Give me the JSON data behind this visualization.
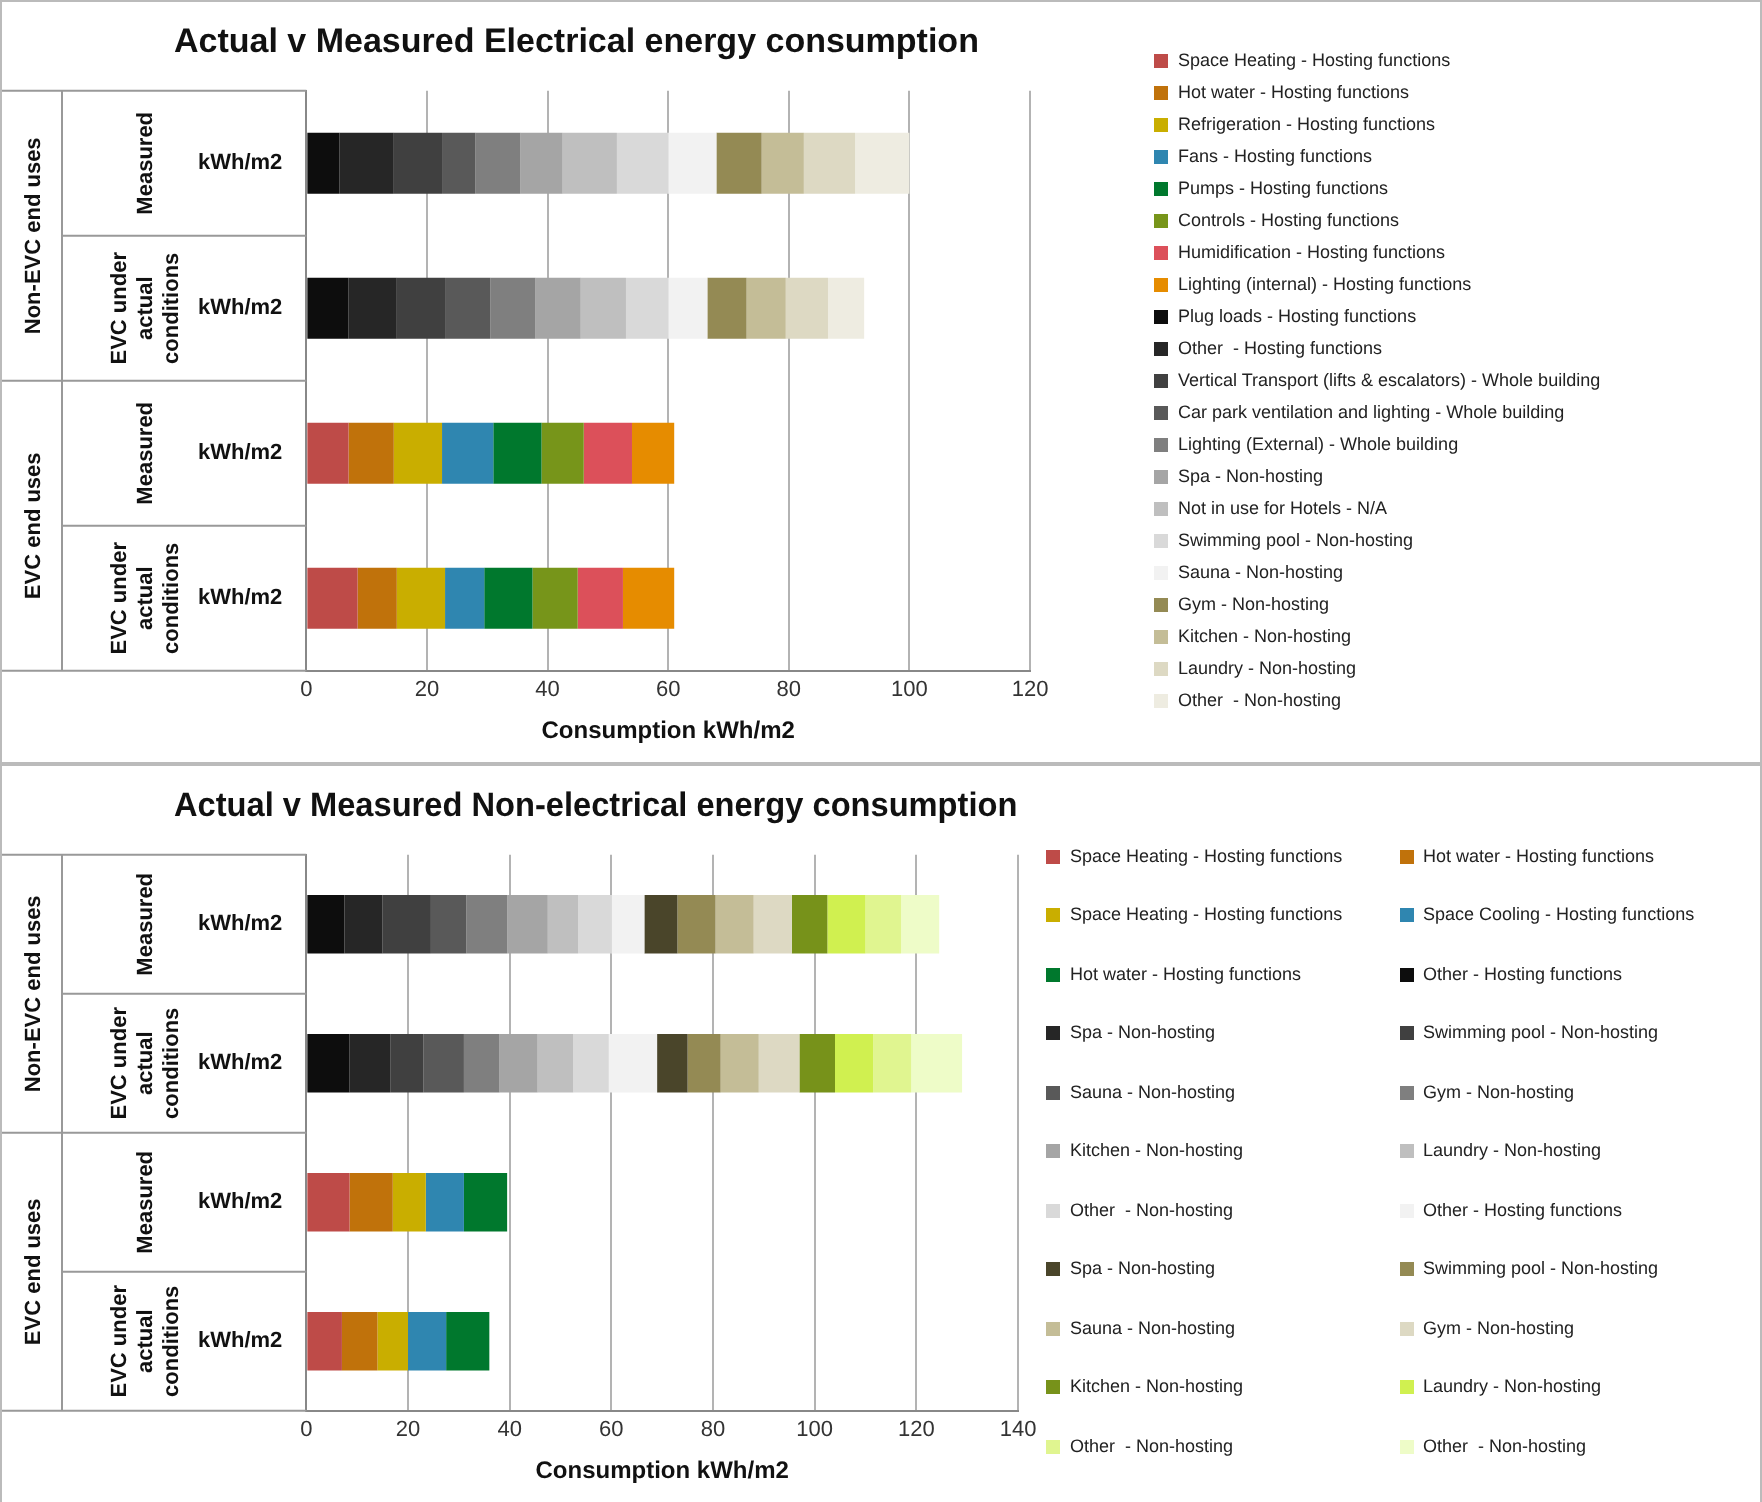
{
  "chart_data": [
    {
      "type": "bar",
      "orientation": "horizontal",
      "stacked": true,
      "title": "Actual v Measured Electrical energy consumption",
      "xlabel": "Consumption kWh/m2",
      "categories": [
        "kWh/m2",
        "kWh/m2",
        "kWh/m2",
        "kWh/m2"
      ],
      "annotations": [
        "Measured",
        "EVC under actual conditions",
        "Measured",
        "EVC under actual conditions",
        "Non-EVC end uses",
        "EVC end uses"
      ],
      "xlim": [
        0,
        120
      ],
      "xticks": [
        0,
        20,
        40,
        60,
        80,
        100,
        120
      ],
      "grid": "x",
      "legend": "right",
      "series": [
        {
          "name": "Space Heating - Hosting functions",
          "color": "#be4b48",
          "values": [
            null,
            null,
            7,
            8.5
          ]
        },
        {
          "name": "Hot water - Hosting functions",
          "color": "#c0720b",
          "values": [
            null,
            null,
            7.5,
            6.5
          ]
        },
        {
          "name": "Refrigeration - Hosting functions",
          "color": "#c9ae00",
          "values": [
            null,
            null,
            8,
            8
          ]
        },
        {
          "name": "Fans - Hosting functions",
          "color": "#2f86b0",
          "values": [
            null,
            null,
            8.5,
            6.5
          ]
        },
        {
          "name": "Pumps - Hosting functions",
          "color": "#00782d",
          "values": [
            null,
            null,
            8,
            8
          ]
        },
        {
          "name": "Controls - Hosting functions",
          "color": "#77951a",
          "values": [
            null,
            null,
            7,
            7.5
          ]
        },
        {
          "name": "Humidification - Hosting functions",
          "color": "#dc505a",
          "values": [
            null,
            null,
            8,
            7.5
          ]
        },
        {
          "name": "Lighting (internal) - Hosting functions",
          "color": "#e68c00",
          "values": [
            null,
            null,
            7,
            8.5
          ]
        },
        {
          "name": "Plug loads - Hosting functions",
          "color": "#0d0d0d",
          "values": [
            5.5,
            7,
            null,
            null
          ]
        },
        {
          "name": "Other  - Hosting functions",
          "color": "#262626",
          "values": [
            9,
            8,
            null,
            null
          ]
        },
        {
          "name": "Vertical Transport (lifts & escalators) - Whole building",
          "color": "#404040",
          "values": [
            8,
            8,
            null,
            null
          ]
        },
        {
          "name": "Car park ventilation and lighting - Whole building",
          "color": "#595959",
          "values": [
            5.5,
            7.5,
            null,
            null
          ]
        },
        {
          "name": "Lighting (External) - Whole building",
          "color": "#7f7f7f",
          "values": [
            7.5,
            7.5,
            null,
            null
          ]
        },
        {
          "name": "Spa - Non-hosting",
          "color": "#a5a5a5",
          "values": [
            7,
            7.5,
            null,
            null
          ]
        },
        {
          "name": "Not in use for Hotels - N/A",
          "color": "#bfbfbf",
          "values": [
            9,
            7.5,
            null,
            null
          ]
        },
        {
          "name": "Swimming pool - Non-hosting",
          "color": "#d9d9d9",
          "values": [
            8.5,
            7,
            null,
            null
          ]
        },
        {
          "name": "Sauna - Non-hosting",
          "color": "#f2f2f2",
          "values": [
            8,
            6.5,
            null,
            null
          ]
        },
        {
          "name": "Gym - Non-hosting",
          "color": "#948a54",
          "values": [
            7.5,
            6.5,
            null,
            null
          ]
        },
        {
          "name": "Kitchen - Non-hosting",
          "color": "#c4bd97",
          "values": [
            7,
            6.5,
            null,
            null
          ]
        },
        {
          "name": "Laundry - Non-hosting",
          "color": "#ddd9c3",
          "values": [
            8.5,
            7,
            null,
            null
          ]
        },
        {
          "name": "Other  - Non-hosting",
          "color": "#eeece1",
          "values": [
            9,
            6,
            null,
            null
          ]
        }
      ]
    },
    {
      "type": "bar",
      "orientation": "horizontal",
      "stacked": true,
      "title": "Actual v Measured Non-electrical energy consumption",
      "xlabel": "Consumption kWh/m2",
      "categories": [
        "kWh/m2",
        "kWh/m2",
        "kWh/m2",
        "kWh/m2"
      ],
      "annotations": [
        "Measured",
        "EVC under actual conditions",
        "Measured",
        "EVC under actual conditions",
        "Non-EVC end uses",
        "EVC end uses"
      ],
      "xlim": [
        0,
        140
      ],
      "xticks": [
        0,
        20,
        40,
        60,
        80,
        100,
        120,
        140
      ],
      "grid": "x",
      "legend": "right",
      "series": [
        {
          "name": "Space Heating - Hosting functions",
          "color": "#be4b48",
          "values": [
            null,
            null,
            8.5,
            7
          ]
        },
        {
          "name": "Hot water - Hosting functions",
          "color": "#c0720b",
          "values": [
            null,
            null,
            8.5,
            7
          ]
        },
        {
          "name": "Space Heating - Hosting functions",
          "color": "#c9ae00",
          "values": [
            null,
            null,
            6.5,
            6
          ]
        },
        {
          "name": "Space Cooling - Hosting functions",
          "color": "#2f86b0",
          "values": [
            null,
            null,
            7.5,
            7.5
          ]
        },
        {
          "name": "Hot water - Hosting functions",
          "color": "#00782d",
          "values": [
            null,
            null,
            8.5,
            8.5
          ]
        },
        {
          "name": "Other - Hosting functions",
          "color": "#0d0d0d",
          "values": [
            7.5,
            8.5,
            null,
            null
          ]
        },
        {
          "name": "Spa - Non-hosting",
          "color": "#262626",
          "values": [
            7.5,
            8,
            null,
            null
          ]
        },
        {
          "name": "Swimming pool - Non-hosting",
          "color": "#404040",
          "values": [
            9.5,
            6.5,
            null,
            null
          ]
        },
        {
          "name": "Sauna - Non-hosting",
          "color": "#595959",
          "values": [
            7,
            8,
            null,
            null
          ]
        },
        {
          "name": "Gym - Non-hosting",
          "color": "#7f7f7f",
          "values": [
            8,
            7,
            null,
            null
          ]
        },
        {
          "name": "Kitchen - Non-hosting",
          "color": "#a5a5a5",
          "values": [
            8,
            7.5,
            null,
            null
          ]
        },
        {
          "name": "Laundry - Non-hosting",
          "color": "#bfbfbf",
          "values": [
            6,
            7,
            null,
            null
          ]
        },
        {
          "name": "Other  - Non-hosting",
          "color": "#d9d9d9",
          "values": [
            6.5,
            7,
            null,
            null
          ]
        },
        {
          "name": "Other - Hosting functions",
          "color": "#f2f2f2",
          "values": [
            6.5,
            9.5,
            null,
            null
          ]
        },
        {
          "name": "Spa - Non-hosting",
          "color": "#4a452a",
          "values": [
            6.5,
            6,
            null,
            null
          ]
        },
        {
          "name": "Swimming pool - Non-hosting",
          "color": "#948a54",
          "values": [
            7.5,
            6.5,
            null,
            null
          ]
        },
        {
          "name": "Sauna - Non-hosting",
          "color": "#c4bd97",
          "values": [
            7.5,
            7.5,
            null,
            null
          ]
        },
        {
          "name": "Gym - Non-hosting",
          "color": "#ddd9c3",
          "values": [
            7.5,
            8,
            null,
            null
          ]
        },
        {
          "name": "Kitchen - Non-hosting",
          "color": "#77921a",
          "values": [
            7,
            7,
            null,
            null
          ]
        },
        {
          "name": "Laundry - Non-hosting",
          "color": "#d0f050",
          "values": [
            7.5,
            7.5,
            null,
            null
          ]
        },
        {
          "name": "Other  - Non-hosting",
          "color": "#e0f590",
          "values": [
            7,
            7.5,
            null,
            null
          ]
        },
        {
          "name": "Other  - Non-hosting",
          "color": "#eefcc8",
          "values": [
            7.5,
            10,
            null,
            null
          ]
        }
      ]
    }
  ]
}
